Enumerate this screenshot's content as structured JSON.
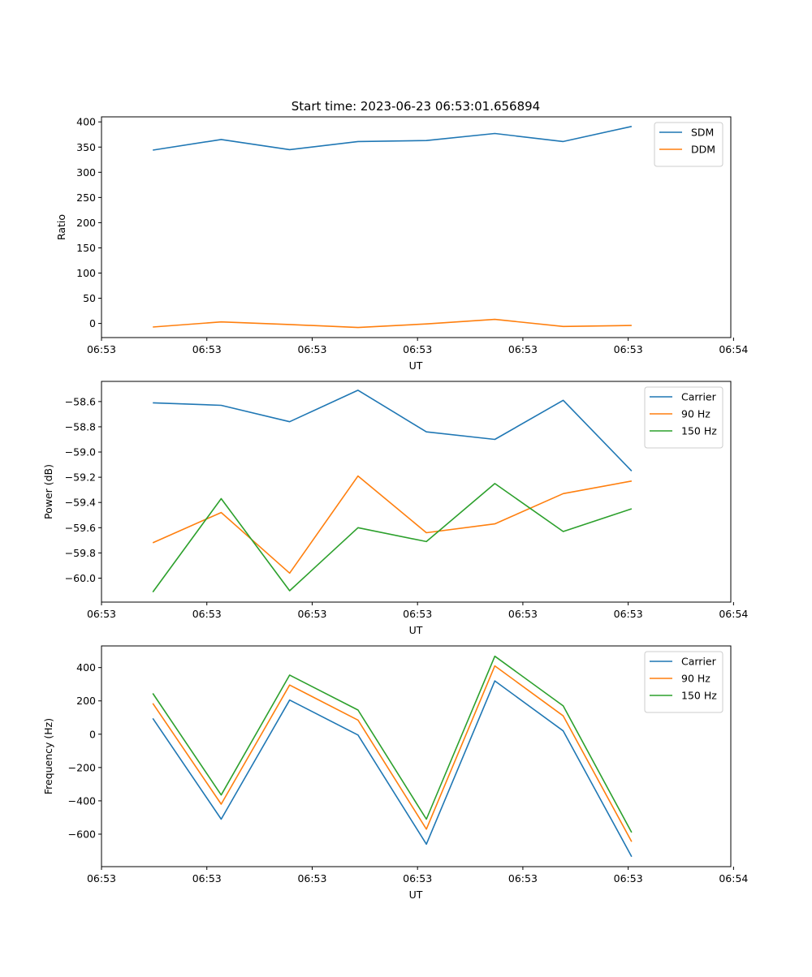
{
  "figure_title": "Start time: 2023-06-23 06:53:01.656894",
  "colors": {
    "blue": "#1f77b4",
    "orange": "#ff7f0e",
    "green": "#2ca02c"
  },
  "chart_data": [
    {
      "type": "line",
      "xlabel": "UT",
      "ylabel": "Ratio",
      "ylim": [
        -28,
        410
      ],
      "xlim": [
        0,
        9.2
      ],
      "x": [
        0.75,
        1.75,
        2.75,
        3.75,
        4.75,
        5.75,
        6.75,
        7.75
      ],
      "xticks": [
        {
          "value": 0,
          "label": "06:53"
        },
        {
          "value": 1.54,
          "label": "06:53"
        },
        {
          "value": 3.08,
          "label": "06:53"
        },
        {
          "value": 4.62,
          "label": "06:53"
        },
        {
          "value": 6.16,
          "label": "06:53"
        },
        {
          "value": 7.7,
          "label": "06:53"
        },
        {
          "value": 9.24,
          "label": "06:54"
        }
      ],
      "yticks": [
        0,
        50,
        100,
        150,
        200,
        250,
        300,
        350,
        400
      ],
      "ytick_labels": [
        "0",
        "50",
        "100",
        "150",
        "200",
        "250",
        "300",
        "350",
        "400"
      ],
      "legend_position": "top-right",
      "series": [
        {
          "name": "SDM",
          "color": "#1f77b4",
          "values": [
            344,
            365,
            345,
            361,
            363,
            377,
            361,
            391
          ]
        },
        {
          "name": "DDM",
          "color": "#ff7f0e",
          "values": [
            -7,
            3,
            -2,
            -8,
            -1,
            8,
            -6,
            -4
          ]
        }
      ]
    },
    {
      "type": "line",
      "xlabel": "UT",
      "ylabel": "Power (dB)",
      "ylim": [
        -60.19,
        -58.44
      ],
      "xlim": [
        0,
        9.2
      ],
      "x": [
        0.75,
        1.75,
        2.75,
        3.75,
        4.75,
        5.75,
        6.75,
        7.75
      ],
      "xticks": [
        {
          "value": 0,
          "label": "06:53"
        },
        {
          "value": 1.54,
          "label": "06:53"
        },
        {
          "value": 3.08,
          "label": "06:53"
        },
        {
          "value": 4.62,
          "label": "06:53"
        },
        {
          "value": 6.16,
          "label": "06:53"
        },
        {
          "value": 7.7,
          "label": "06:53"
        },
        {
          "value": 9.24,
          "label": "06:54"
        }
      ],
      "yticks": [
        -60.0,
        -59.8,
        -59.6,
        -59.4,
        -59.2,
        -59.0,
        -58.8,
        -58.6
      ],
      "ytick_labels": [
        "−60.0",
        "−59.8",
        "−59.6",
        "−59.4",
        "−59.2",
        "−59.0",
        "−58.8",
        "−58.6"
      ],
      "legend_position": "top-right",
      "series": [
        {
          "name": "Carrier",
          "color": "#1f77b4",
          "values": [
            -58.61,
            -58.63,
            -58.76,
            -58.51,
            -58.84,
            -58.9,
            -58.59,
            -59.15
          ]
        },
        {
          "name": "90 Hz",
          "color": "#ff7f0e",
          "values": [
            -59.72,
            -59.48,
            -59.96,
            -59.19,
            -59.64,
            -59.57,
            -59.33,
            -59.23
          ]
        },
        {
          "name": "150 Hz",
          "color": "#2ca02c",
          "values": [
            -60.11,
            -59.37,
            -60.1,
            -59.6,
            -59.71,
            -59.25,
            -59.63,
            -59.45
          ]
        }
      ]
    },
    {
      "type": "line",
      "xlabel": "UT",
      "ylabel": "Frequency (Hz)",
      "ylim": [
        -795,
        530
      ],
      "xlim": [
        0,
        9.2
      ],
      "x": [
        0.75,
        1.75,
        2.75,
        3.75,
        4.75,
        5.75,
        6.75,
        7.75
      ],
      "xticks": [
        {
          "value": 0,
          "label": "06:53"
        },
        {
          "value": 1.54,
          "label": "06:53"
        },
        {
          "value": 3.08,
          "label": "06:53"
        },
        {
          "value": 4.62,
          "label": "06:53"
        },
        {
          "value": 6.16,
          "label": "06:53"
        },
        {
          "value": 7.7,
          "label": "06:53"
        },
        {
          "value": 9.24,
          "label": "06:54"
        }
      ],
      "yticks": [
        -600,
        -400,
        -200,
        0,
        200,
        400
      ],
      "ytick_labels": [
        "−600",
        "−400",
        "−200",
        "0",
        "200",
        "400"
      ],
      "legend_position": "top-right",
      "series": [
        {
          "name": "Carrier",
          "color": "#1f77b4",
          "values": [
            95,
            -510,
            205,
            -5,
            -660,
            320,
            20,
            -735
          ]
        },
        {
          "name": "90 Hz",
          "color": "#ff7f0e",
          "values": [
            185,
            -420,
            295,
            85,
            -570,
            410,
            110,
            -645
          ]
        },
        {
          "name": "150 Hz",
          "color": "#2ca02c",
          "values": [
            245,
            -365,
            355,
            145,
            -510,
            468,
            170,
            -590
          ]
        }
      ]
    }
  ]
}
